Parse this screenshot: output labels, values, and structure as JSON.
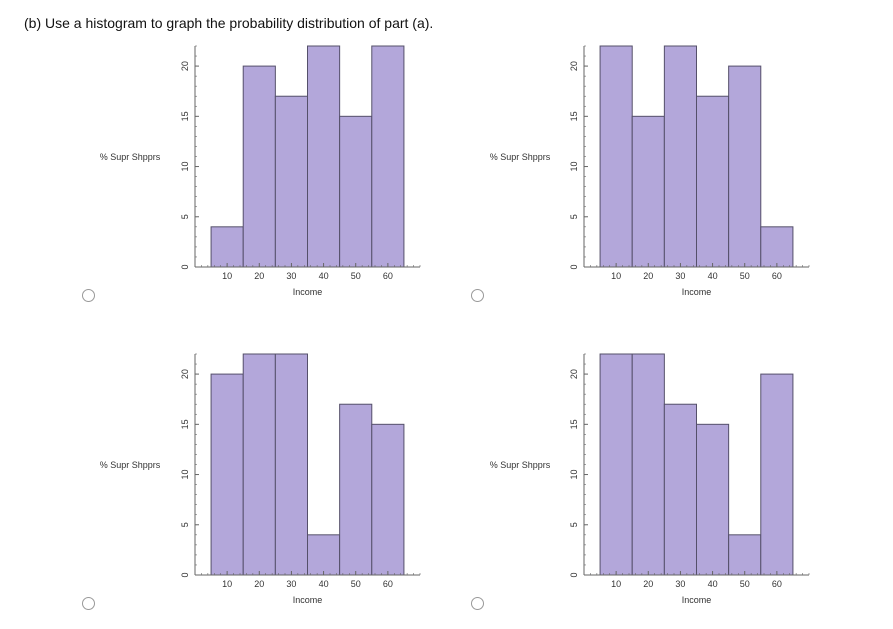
{
  "question": {
    "text": "(b) Use a histogram to graph the probability distribution of part (a)."
  },
  "style": {
    "bar_fill": "#b3a7da",
    "bar_stroke": "#55506a",
    "axis_color": "#666666",
    "text_color": "#333333"
  },
  "chart_data": [
    {
      "type": "bar",
      "option": "A",
      "xlabel": "Income",
      "ylabel": "% Supr Shpprs",
      "bins": [
        [
          5,
          15
        ],
        [
          15,
          25
        ],
        [
          25,
          35
        ],
        [
          35,
          45
        ],
        [
          45,
          55
        ],
        [
          55,
          65
        ]
      ],
      "values": [
        4,
        20,
        17,
        22,
        15,
        22
      ],
      "xticks": [
        10,
        20,
        30,
        40,
        50,
        60
      ],
      "yticks": [
        0,
        5,
        10,
        15,
        20
      ],
      "xlim": [
        0,
        70
      ],
      "ylim": [
        0,
        22
      ]
    },
    {
      "type": "bar",
      "option": "B",
      "xlabel": "Income",
      "ylabel": "% Supr Shpprs",
      "bins": [
        [
          5,
          15
        ],
        [
          15,
          25
        ],
        [
          25,
          35
        ],
        [
          35,
          45
        ],
        [
          45,
          55
        ],
        [
          55,
          65
        ]
      ],
      "values": [
        22,
        15,
        22,
        17,
        20,
        4
      ],
      "xticks": [
        10,
        20,
        30,
        40,
        50,
        60
      ],
      "yticks": [
        0,
        5,
        10,
        15,
        20
      ],
      "xlim": [
        0,
        70
      ],
      "ylim": [
        0,
        22
      ]
    },
    {
      "type": "bar",
      "option": "C",
      "xlabel": "Income",
      "ylabel": "% Supr Shpprs",
      "bins": [
        [
          5,
          15
        ],
        [
          15,
          25
        ],
        [
          25,
          35
        ],
        [
          35,
          45
        ],
        [
          45,
          55
        ],
        [
          55,
          65
        ]
      ],
      "values": [
        20,
        22,
        22,
        4,
        17,
        15
      ],
      "xticks": [
        10,
        20,
        30,
        40,
        50,
        60
      ],
      "yticks": [
        0,
        5,
        10,
        15,
        20
      ],
      "xlim": [
        0,
        70
      ],
      "ylim": [
        0,
        22
      ]
    },
    {
      "type": "bar",
      "option": "D",
      "xlabel": "Income",
      "ylabel": "% Supr Shpprs",
      "bins": [
        [
          5,
          15
        ],
        [
          15,
          25
        ],
        [
          25,
          35
        ],
        [
          35,
          45
        ],
        [
          45,
          55
        ],
        [
          55,
          65
        ]
      ],
      "values": [
        22,
        22,
        17,
        15,
        4,
        20
      ],
      "xticks": [
        10,
        20,
        30,
        40,
        50,
        60
      ],
      "yticks": [
        0,
        5,
        10,
        15,
        20
      ],
      "xlim": [
        0,
        70
      ],
      "ylim": [
        0,
        22
      ]
    }
  ]
}
